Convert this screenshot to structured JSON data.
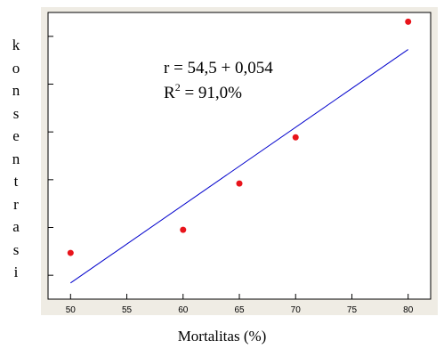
{
  "chart_data": {
    "type": "scatter",
    "xlabel": "Mortalitas (%)",
    "ylabel": "konsentrasi",
    "xlim": [
      48,
      82
    ],
    "ylim": [
      0,
      6.2
    ],
    "xticks": [
      50,
      55,
      60,
      65,
      70,
      75,
      80
    ],
    "x_tick_labels": [
      "50",
      "55",
      "60",
      "65",
      "70",
      "75",
      "80"
    ],
    "y_tick_count": 6,
    "y_tick_labels_shown": false,
    "grid": false,
    "series": [
      {
        "values": [
          {
            "x": 50,
            "y": 1.0
          },
          {
            "x": 60,
            "y": 1.5
          },
          {
            "x": 65,
            "y": 2.5
          },
          {
            "x": 70,
            "y": 3.5
          },
          {
            "x": 80,
            "y": 6.0
          }
        ],
        "marker_color": "#e8141b"
      }
    ],
    "fit_line": {
      "x": [
        50,
        80
      ],
      "y": [
        0.35,
        5.4
      ],
      "color": "#0000cc"
    },
    "annotations": {
      "equation": "r = 54,5 + 0,054",
      "r_squared_prefix": "R",
      "r_squared_sup": "2",
      "r_squared_value": " = 91,0%"
    },
    "colors": {
      "panel_background": "#efece4",
      "plot_background": "#ffffff"
    }
  }
}
